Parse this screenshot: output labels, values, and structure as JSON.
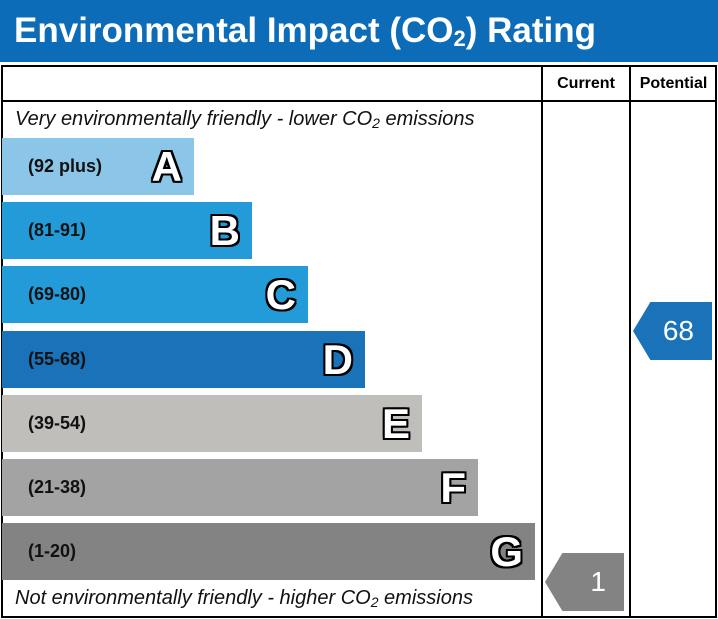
{
  "title": {
    "text": "Environmental Impact (CO",
    "sub": "2",
    "end": ") Rating"
  },
  "columns": {
    "current": "Current",
    "potential": "Potential"
  },
  "top_note": {
    "text": "Very environmentally friendly - lower CO",
    "sub": "2",
    "end": " emissions"
  },
  "bottom_note": {
    "text": "Not environmentally friendly - higher CO",
    "sub": "2",
    "end": " emissions"
  },
  "bands": [
    {
      "range": "(92 plus)",
      "letter": "A",
      "color": "#8bc6e8"
    },
    {
      "range": "(81-91)",
      "letter": "B",
      "color": "#239bd8"
    },
    {
      "range": "(69-80)",
      "letter": "C",
      "color": "#239bd8"
    },
    {
      "range": "(55-68)",
      "letter": "D",
      "color": "#1a72b8"
    },
    {
      "range": "(39-54)",
      "letter": "E",
      "color": "#bfbebb"
    },
    {
      "range": "(21-38)",
      "letter": "F",
      "color": "#a3a3a3"
    },
    {
      "range": "(1-20)",
      "letter": "G",
      "color": "#838383"
    }
  ],
  "current": {
    "value": "1",
    "band": "G",
    "color": "#838383"
  },
  "potential": {
    "value": "68",
    "band": "D",
    "color": "#1a72b8"
  }
}
